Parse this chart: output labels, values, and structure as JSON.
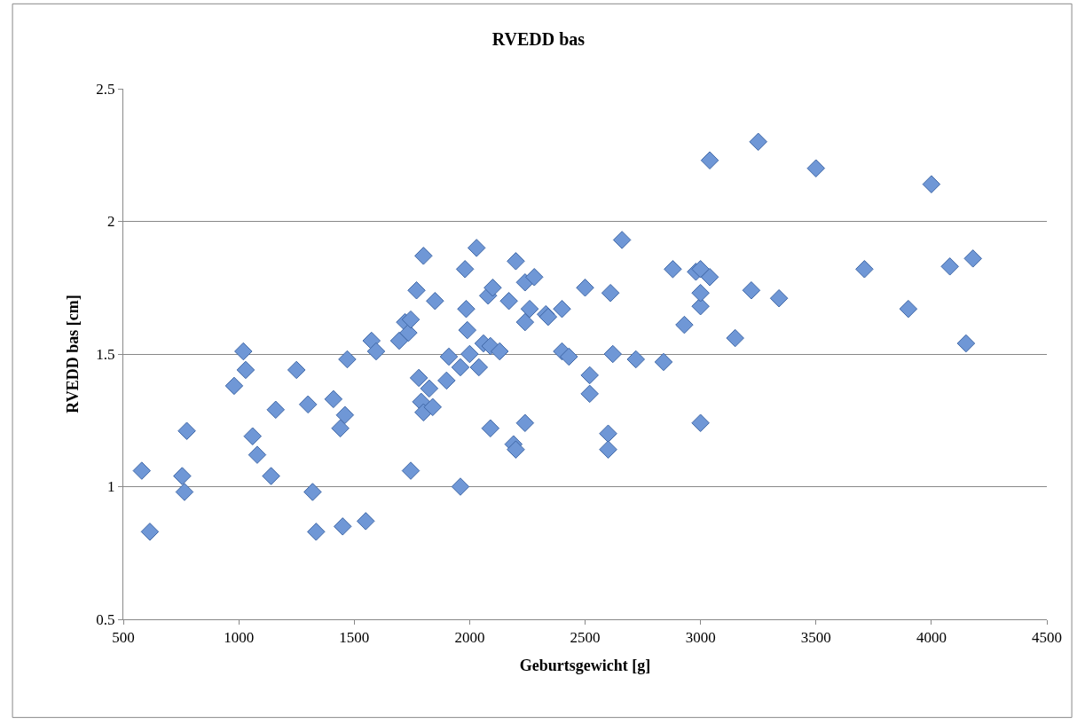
{
  "chart_data": {
    "type": "scatter",
    "title": "RVEDD bas",
    "xlabel": "Geburtsgewicht [g]",
    "ylabel": "RVEDD bas [cm]",
    "x": [
      580,
      615,
      755,
      765,
      775,
      980,
      1020,
      1030,
      1060,
      1080,
      1160,
      1140,
      1250,
      1300,
      1320,
      1335,
      1410,
      1440,
      1460,
      1470,
      1450,
      1550,
      1575,
      1595,
      1695,
      1720,
      1735,
      1745,
      1745,
      1770,
      1800,
      1780,
      1790,
      1800,
      1825,
      1840,
      1850,
      1900,
      1910,
      1960,
      1960,
      1980,
      1985,
      1990,
      2000,
      2030,
      2040,
      2060,
      2080,
      2090,
      2100,
      2090,
      2130,
      2170,
      2190,
      2200,
      2200,
      2240,
      2240,
      2240,
      2260,
      2280,
      2330,
      2340,
      2400,
      2400,
      2430,
      2500,
      2520,
      2520,
      2660,
      2600,
      2600,
      2610,
      2620,
      2720,
      2840,
      2880,
      2930,
      2980,
      3000,
      3000,
      3000,
      3000,
      3040,
      3040,
      3150,
      3220,
      3250,
      3340,
      3500,
      3710,
      3900,
      4000,
      4080,
      4150,
      4180
    ],
    "series": [
      {
        "color": "#6f97d6",
        "values": [
          1.06,
          0.83,
          1.04,
          0.98,
          1.21,
          1.38,
          1.51,
          1.44,
          1.19,
          1.12,
          1.29,
          1.04,
          1.44,
          1.31,
          0.98,
          0.83,
          1.33,
          1.22,
          1.27,
          1.48,
          0.85,
          0.87,
          1.55,
          1.51,
          1.55,
          1.62,
          1.58,
          1.63,
          1.06,
          1.74,
          1.87,
          1.41,
          1.32,
          1.28,
          1.37,
          1.3,
          1.7,
          1.4,
          1.49,
          1.0,
          1.45,
          1.82,
          1.67,
          1.59,
          1.5,
          1.9,
          1.45,
          1.54,
          1.72,
          1.22,
          1.75,
          1.53,
          1.51,
          1.7,
          1.16,
          1.85,
          1.14,
          1.62,
          1.24,
          1.77,
          1.67,
          1.79,
          1.65,
          1.64,
          1.67,
          1.51,
          1.49,
          1.75,
          1.42,
          1.35,
          1.93,
          1.2,
          1.14,
          1.73,
          1.5,
          1.48,
          1.47,
          1.82,
          1.61,
          1.81,
          1.82,
          1.68,
          1.73,
          1.24,
          1.79,
          2.23,
          1.56,
          1.74,
          2.3,
          1.71,
          2.2,
          1.82,
          1.67,
          2.14,
          1.83,
          1.54,
          1.86
        ]
      }
    ],
    "xlim": [
      500,
      4500
    ],
    "xticks": [
      500,
      1000,
      1500,
      2000,
      2500,
      3000,
      3500,
      4000,
      4500
    ],
    "ylim": [
      0.5,
      2.5
    ],
    "yticks": [
      {
        "value": 0.5,
        "label": "0.5"
      },
      {
        "value": 1,
        "label": "1"
      },
      {
        "value": 1.5,
        "label": "1.5"
      },
      {
        "value": 2,
        "label": "2"
      },
      {
        "value": 2.5,
        "label": "2.5"
      }
    ],
    "grid": "y",
    "marker": "diamond",
    "legend": false
  }
}
